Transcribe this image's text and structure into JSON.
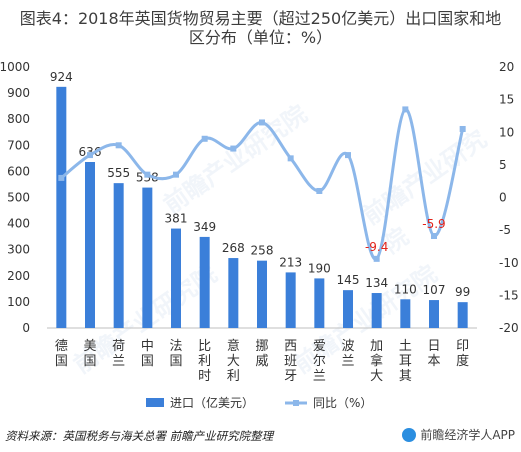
{
  "title_line1": "图表4：2018年英国货物贸易主要（超过250亿美元）出口国家和地",
  "title_line2": "区分布（单位：%）",
  "source": "资料来源：英国税务与海关总署  前瞻产业研究院整理",
  "brand": "前瞻经济学人APP",
  "watermark": "前瞻产业研究院",
  "colors": {
    "bar": "#3b7fd9",
    "line": "#8cb7ea",
    "negative_label": "#e2231a",
    "text": "#333333"
  },
  "chart_data": {
    "type": "bar",
    "categories": [
      "德国",
      "美国",
      "荷兰",
      "中国",
      "法国",
      "比利时",
      "意大利",
      "挪威",
      "西班牙",
      "爱尔兰",
      "波兰",
      "加拿大",
      "土耳其",
      "日本",
      "印度"
    ],
    "series": [
      {
        "name": "进口（亿美元）",
        "type": "bar",
        "axis": "left",
        "values": [
          924,
          636,
          555,
          538,
          381,
          349,
          268,
          258,
          213,
          190,
          145,
          134,
          110,
          107,
          99
        ]
      },
      {
        "name": "同比（%）",
        "type": "line",
        "axis": "right",
        "values": [
          3,
          6.5,
          8,
          3.5,
          3.5,
          9,
          7.5,
          11.5,
          6,
          1,
          6.5,
          -9.4,
          13.5,
          -5.9,
          10.5
        ]
      }
    ],
    "line_labels": [
      "",
      "",
      "",
      "",
      "",
      "",
      "",
      "",
      "",
      "",
      "",
      "-9.4",
      "",
      "-5.9",
      ""
    ],
    "ylim_left": [
      0,
      1000
    ],
    "yticks_left": [
      "1000",
      "900",
      "800",
      "700",
      "600",
      "500",
      "400",
      "300",
      "200",
      "100",
      "0"
    ],
    "ylim_right": [
      -20,
      20
    ],
    "yticks_right": [
      "20",
      "15",
      "10",
      "5",
      "0",
      "-5",
      "-10",
      "-15",
      "-20"
    ],
    "legend_position": "bottom"
  }
}
